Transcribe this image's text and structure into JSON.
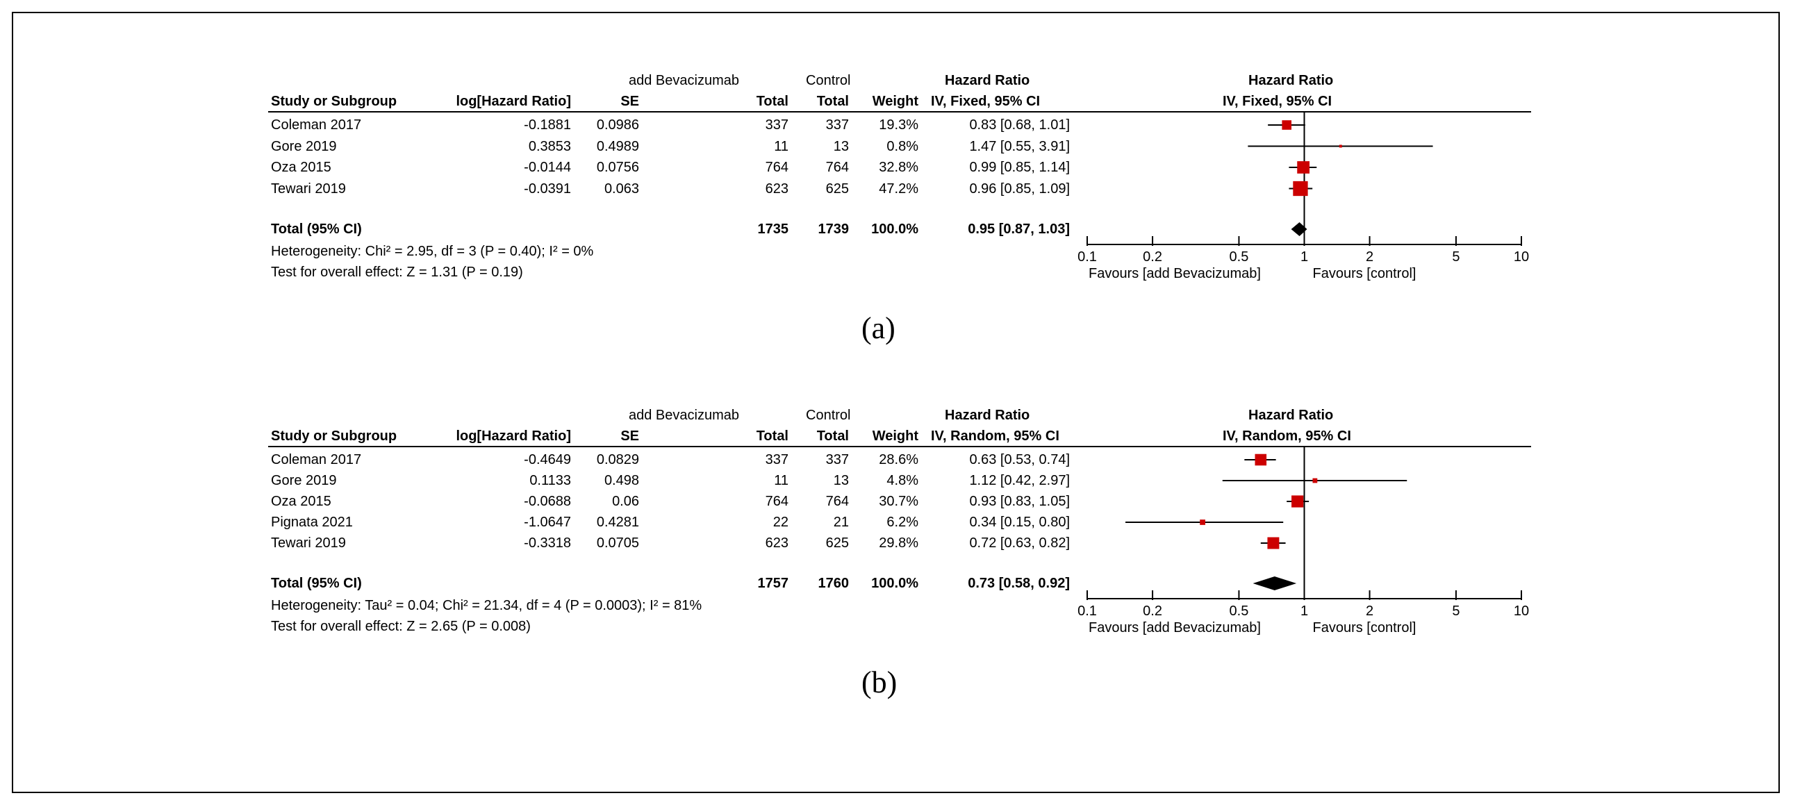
{
  "chart_data": [
    {
      "type": "forest",
      "label": "(a)",
      "headers": {
        "group_exp": "add Bevacizumab",
        "group_ctrl": "Control",
        "col_study": "Study or Subgroup",
        "col_loghr": "log[Hazard Ratio]",
        "col_se": "SE",
        "col_exp_total": "Total",
        "col_ctrl_total": "Total",
        "col_weight": "Weight",
        "col_hr_title": "Hazard Ratio",
        "col_hr_method": "IV, Fixed, 95% CI",
        "plot_title": "Hazard Ratio",
        "plot_method": "IV, Fixed, 95% CI"
      },
      "studies": [
        {
          "name": "Coleman 2017",
          "loghr": "-0.1881",
          "se": "0.0986",
          "exp_total": "337",
          "ctrl_total": "337",
          "weight": "19.3%",
          "hr_ci": "0.83 [0.68, 1.01]",
          "hr": 0.83,
          "lo": 0.68,
          "hi": 1.01,
          "w": 19.3
        },
        {
          "name": "Gore 2019",
          "loghr": "0.3853",
          "se": "0.4989",
          "exp_total": "11",
          "ctrl_total": "13",
          "weight": "0.8%",
          "hr_ci": "1.47 [0.55, 3.91]",
          "hr": 1.47,
          "lo": 0.55,
          "hi": 3.91,
          "w": 0.8
        },
        {
          "name": "Oza 2015",
          "loghr": "-0.0144",
          "se": "0.0756",
          "exp_total": "764",
          "ctrl_total": "764",
          "weight": "32.8%",
          "hr_ci": "0.99 [0.85, 1.14]",
          "hr": 0.99,
          "lo": 0.85,
          "hi": 1.14,
          "w": 32.8
        },
        {
          "name": "Tewari 2019",
          "loghr": "-0.0391",
          "se": "0.063",
          "exp_total": "623",
          "ctrl_total": "625",
          "weight": "47.2%",
          "hr_ci": "0.96 [0.85, 1.09]",
          "hr": 0.96,
          "lo": 0.85,
          "hi": 1.09,
          "w": 47.2
        }
      ],
      "total": {
        "name": "Total (95% CI)",
        "exp_total": "1735",
        "ctrl_total": "1739",
        "weight": "100.0%",
        "hr_ci": "0.95 [0.87, 1.03]",
        "hr": 0.95,
        "lo": 0.87,
        "hi": 1.03
      },
      "heterogeneity": "Heterogeneity: Chi² = 2.95, df = 3 (P = 0.40); I² = 0%",
      "overall_effect": "Test for overall effect: Z = 1.31 (P = 0.19)",
      "x_scale": "log",
      "x_ticks": [
        0.1,
        0.2,
        0.5,
        1,
        2,
        5,
        10
      ],
      "x_tick_labels": [
        "0.1",
        "0.2",
        "0.5",
        "1",
        "2",
        "5",
        "10"
      ],
      "xlim": [
        0.1,
        10
      ],
      "favours_left": "Favours [add Bevacizumab]",
      "favours_right": "Favours [control]"
    },
    {
      "type": "forest",
      "label": "(b)",
      "headers": {
        "group_exp": "add Bevacizumab",
        "group_ctrl": "Control",
        "col_study": "Study or Subgroup",
        "col_loghr": "log[Hazard Ratio]",
        "col_se": "SE",
        "col_exp_total": "Total",
        "col_ctrl_total": "Total",
        "col_weight": "Weight",
        "col_hr_title": "Hazard Ratio",
        "col_hr_method": "IV, Random, 95% CI",
        "plot_title": "Hazard Ratio",
        "plot_method": "IV, Random, 95% CI"
      },
      "studies": [
        {
          "name": "Coleman 2017",
          "loghr": "-0.4649",
          "se": "0.0829",
          "exp_total": "337",
          "ctrl_total": "337",
          "weight": "28.6%",
          "hr_ci": "0.63 [0.53, 0.74]",
          "hr": 0.63,
          "lo": 0.53,
          "hi": 0.74,
          "w": 28.6
        },
        {
          "name": "Gore 2019",
          "loghr": "0.1133",
          "se": "0.498",
          "exp_total": "11",
          "ctrl_total": "13",
          "weight": "4.8%",
          "hr_ci": "1.12 [0.42, 2.97]",
          "hr": 1.12,
          "lo": 0.42,
          "hi": 2.97,
          "w": 4.8
        },
        {
          "name": "Oza 2015",
          "loghr": "-0.0688",
          "se": "0.06",
          "exp_total": "764",
          "ctrl_total": "764",
          "weight": "30.7%",
          "hr_ci": "0.93 [0.83, 1.05]",
          "hr": 0.93,
          "lo": 0.83,
          "hi": 1.05,
          "w": 30.7
        },
        {
          "name": "Pignata 2021",
          "loghr": "-1.0647",
          "se": "0.4281",
          "exp_total": "22",
          "ctrl_total": "21",
          "weight": "6.2%",
          "hr_ci": "0.34 [0.15, 0.80]",
          "hr": 0.34,
          "lo": 0.15,
          "hi": 0.8,
          "w": 6.2
        },
        {
          "name": "Tewari 2019",
          "loghr": "-0.3318",
          "se": "0.0705",
          "exp_total": "623",
          "ctrl_total": "625",
          "weight": "29.8%",
          "hr_ci": "0.72 [0.63, 0.82]",
          "hr": 0.72,
          "lo": 0.63,
          "hi": 0.82,
          "w": 29.8
        }
      ],
      "total": {
        "name": "Total (95% CI)",
        "exp_total": "1757",
        "ctrl_total": "1760",
        "weight": "100.0%",
        "hr_ci": "0.73 [0.58, 0.92]",
        "hr": 0.73,
        "lo": 0.58,
        "hi": 0.92
      },
      "heterogeneity": "Heterogeneity: Tau² = 0.04; Chi² = 21.34, df = 4 (P = 0.0003); I² = 81%",
      "overall_effect": "Test for overall effect: Z = 2.65 (P = 0.008)",
      "x_scale": "log",
      "x_ticks": [
        0.1,
        0.2,
        0.5,
        1,
        2,
        5,
        10
      ],
      "x_tick_labels": [
        "0.1",
        "0.2",
        "0.5",
        "1",
        "2",
        "5",
        "10"
      ],
      "xlim": [
        0.1,
        10
      ],
      "favours_left": "Favours [add Bevacizumab]",
      "favours_right": "Favours [control]"
    }
  ],
  "colors": {
    "marker": "#cc0000",
    "diamond": "#000000",
    "axis": "#000000"
  }
}
